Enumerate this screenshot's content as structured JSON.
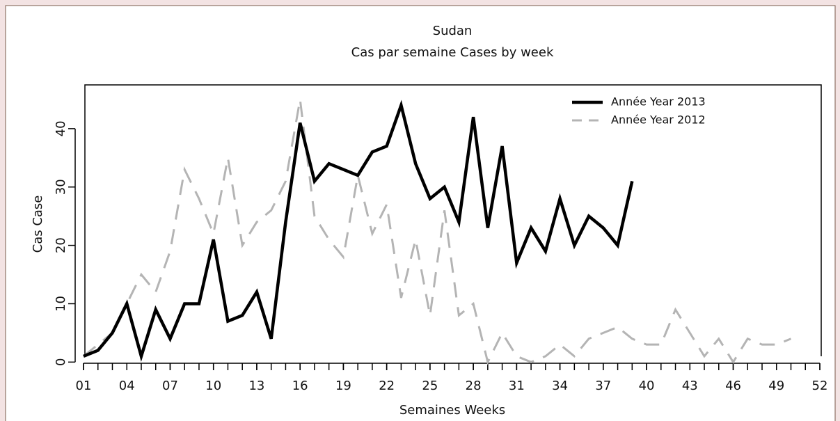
{
  "chart_data": {
    "type": "line",
    "title": "Sudan",
    "subtitle": "Cas par semaine Cases by week",
    "x_label": "Semaines Weeks",
    "y_label": "Cas Case",
    "x": [
      1,
      2,
      3,
      4,
      5,
      6,
      7,
      8,
      9,
      10,
      11,
      12,
      13,
      14,
      15,
      16,
      17,
      18,
      19,
      20,
      21,
      22,
      23,
      24,
      25,
      26,
      27,
      28,
      29,
      30,
      31,
      32,
      33,
      34,
      35,
      36,
      37,
      38,
      39,
      40,
      41,
      42,
      43,
      44,
      45,
      46,
      47,
      48,
      49,
      50,
      51,
      52
    ],
    "series": [
      {
        "name": "Année Year 2013",
        "color": "#000000",
        "dash": false,
        "values": [
          1,
          2,
          5,
          10,
          1,
          9,
          4,
          10,
          10,
          21,
          7,
          8,
          12,
          4,
          24,
          41,
          31,
          34,
          33,
          32,
          36,
          37,
          44,
          34,
          28,
          30,
          24,
          42,
          23,
          37,
          17,
          23,
          19,
          28,
          20,
          25,
          23,
          20,
          31,
          null,
          null,
          null,
          null,
          null,
          null,
          null,
          null,
          null,
          null,
          null,
          null,
          null
        ]
      },
      {
        "name": "Année Year 2012",
        "color": "#b4b4b4",
        "dash": true,
        "values": [
          1,
          3,
          5,
          10,
          15,
          12,
          19,
          33,
          28,
          22,
          35,
          20,
          24,
          26,
          31,
          45,
          25,
          21,
          18,
          32,
          22,
          27,
          11,
          21,
          8,
          26,
          8,
          10,
          0,
          5,
          1,
          0,
          1,
          3,
          1,
          4,
          5,
          6,
          4,
          3,
          3,
          9,
          5,
          1,
          4,
          0,
          4,
          3,
          3,
          4,
          null,
          null
        ]
      }
    ],
    "xlim": [
      1,
      52
    ],
    "xticks": [
      {
        "value": 1,
        "label": "01"
      },
      {
        "value": 4,
        "label": "04"
      },
      {
        "value": 7,
        "label": "07"
      },
      10,
      13,
      16,
      19,
      22,
      25,
      28,
      31,
      34,
      37,
      40,
      43,
      46,
      49,
      52
    ],
    "xminor": [
      1,
      2,
      3,
      4,
      5,
      6,
      7,
      8,
      9,
      10,
      11,
      12,
      13,
      14,
      15,
      16,
      17,
      18,
      19,
      20,
      21,
      22,
      23,
      24,
      25,
      26,
      27,
      28,
      29,
      30,
      31,
      32,
      33,
      34,
      35,
      36,
      37,
      38,
      39,
      40,
      41,
      42,
      43,
      44,
      45,
      46,
      47,
      48,
      49,
      50,
      51,
      52
    ],
    "ylim": [
      -0.2,
      47.5
    ],
    "yticks": [
      0,
      10,
      20,
      30,
      40
    ],
    "legend": "top-right"
  }
}
